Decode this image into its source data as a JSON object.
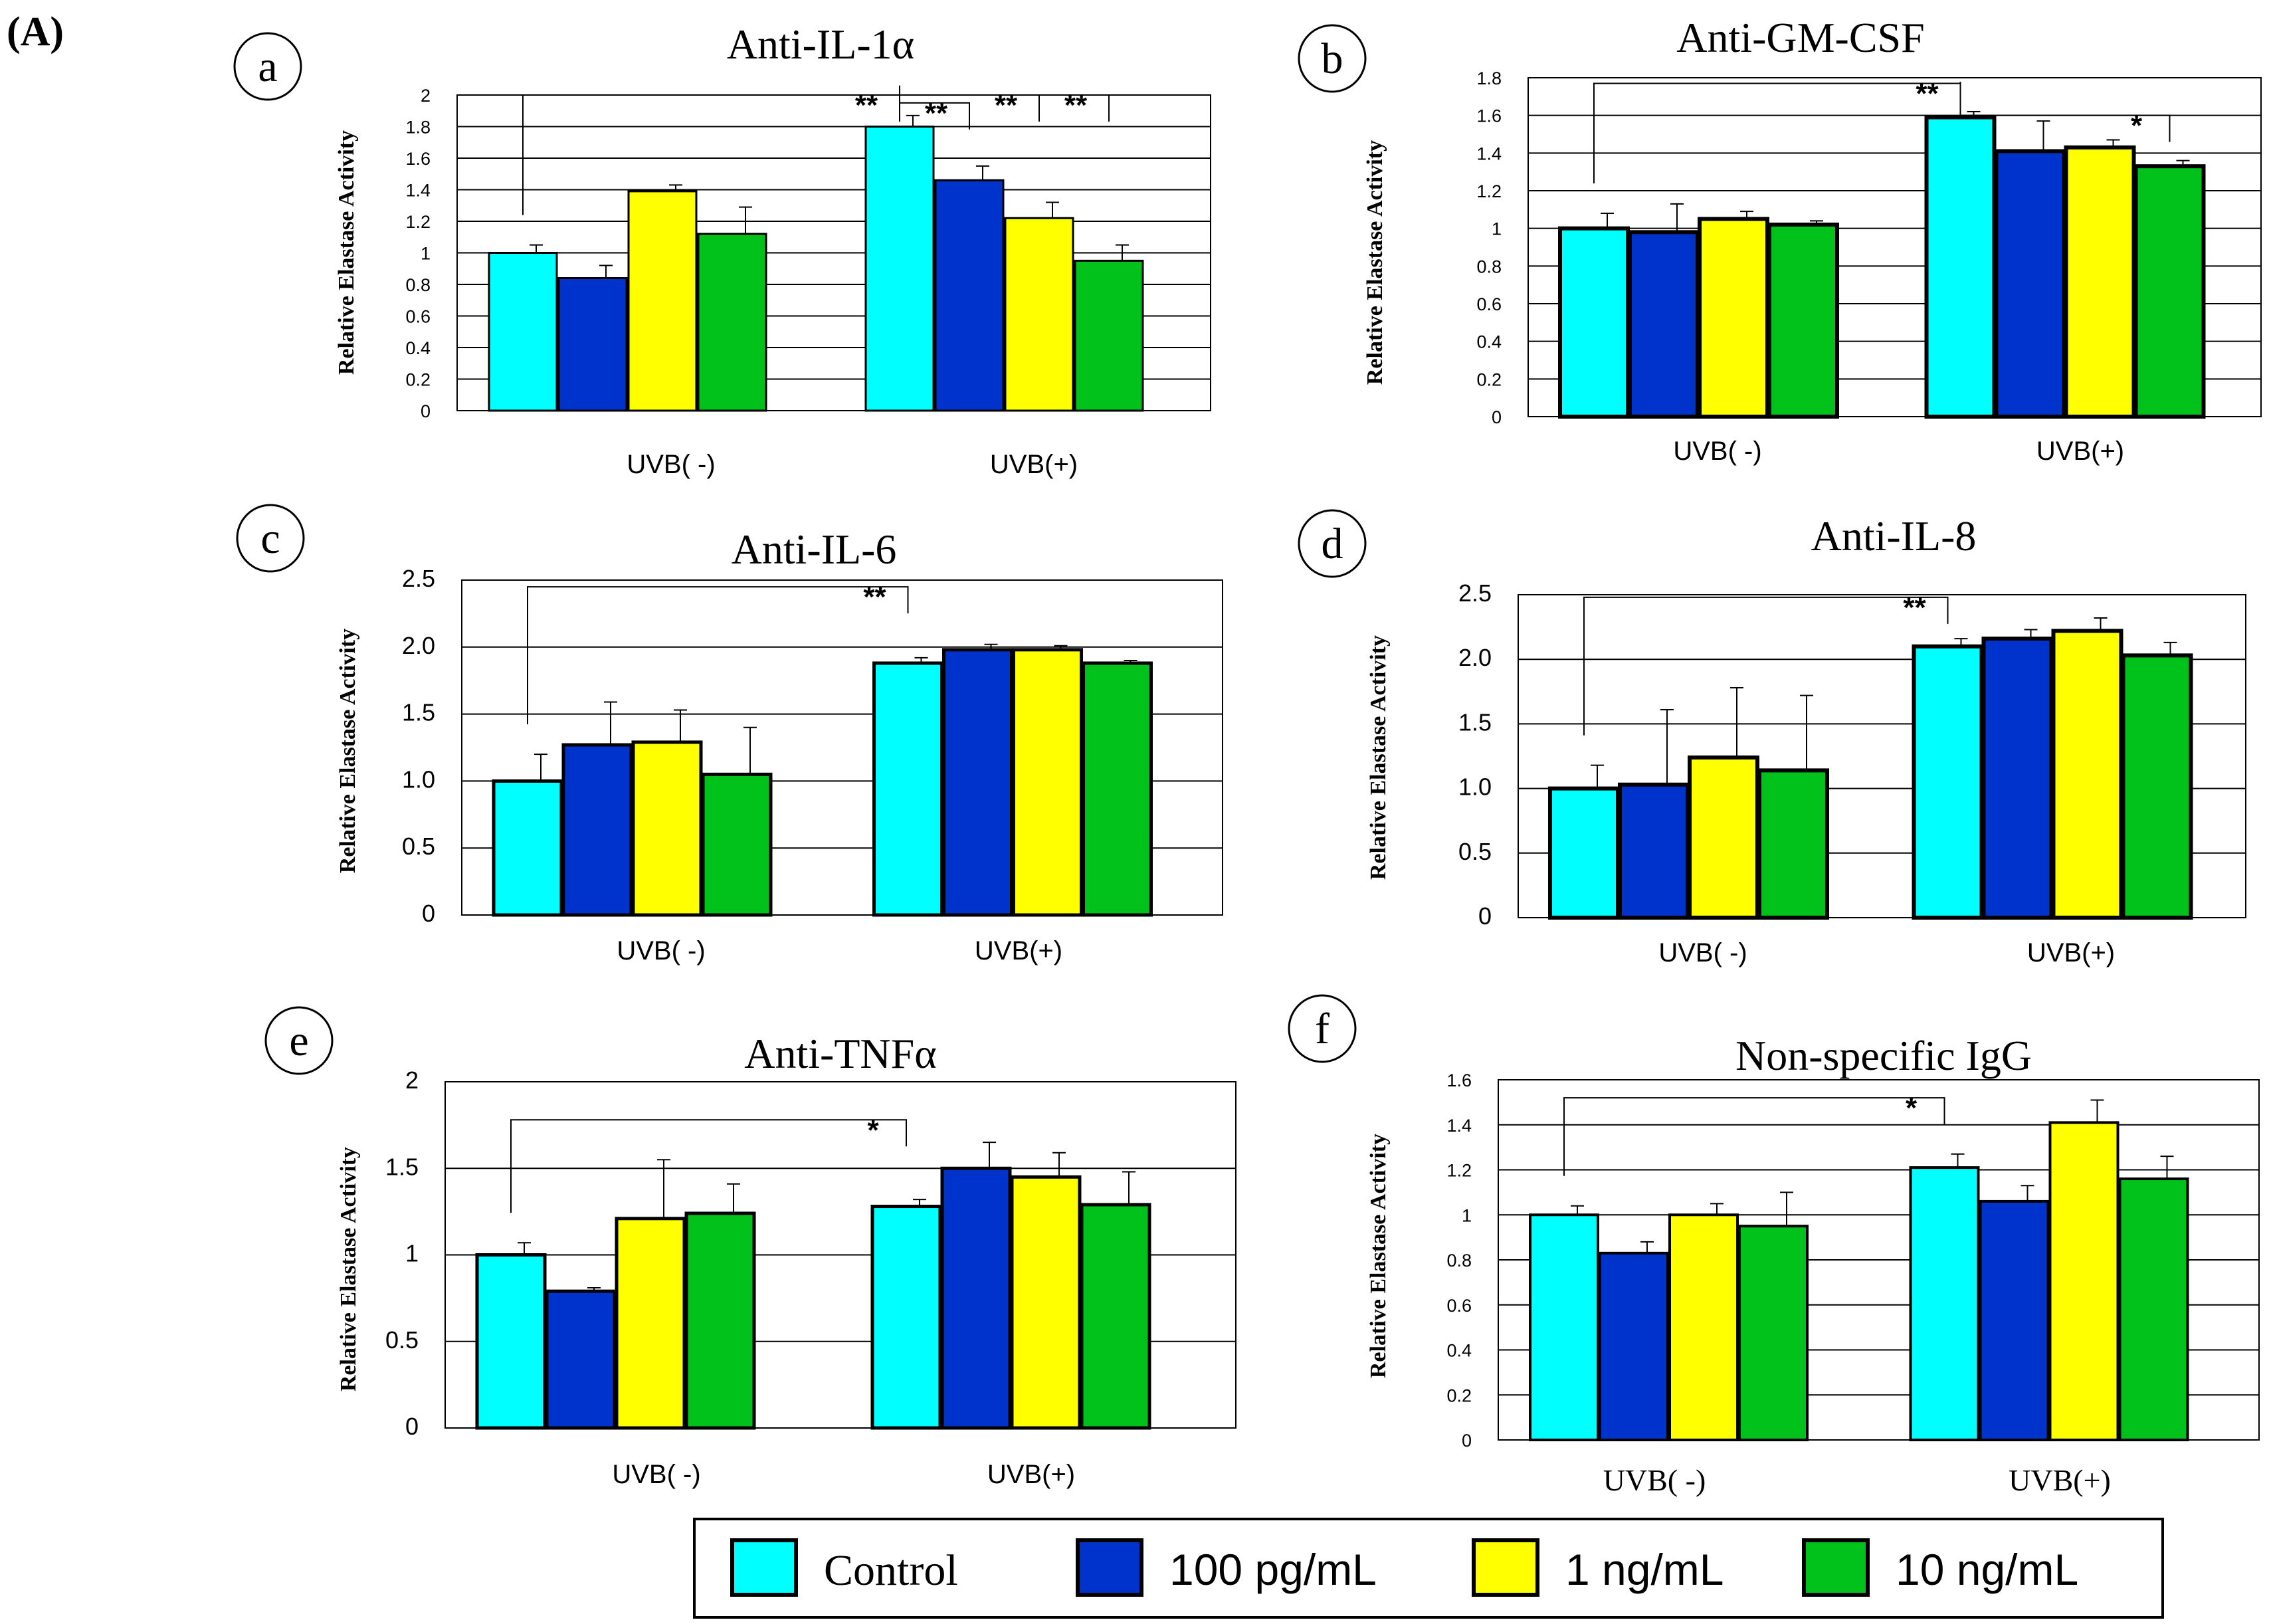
{
  "figure_label": "(A)",
  "legend": {
    "items": [
      {
        "label": "Control",
        "color": "#00FFFF"
      },
      {
        "label": "100 pg/mL",
        "color": "#0033CC"
      },
      {
        "label": "1 ng/mL",
        "color": "#FFFF00"
      },
      {
        "label": "10 ng/mL",
        "color": "#00C21A"
      }
    ]
  },
  "chart_data": [
    {
      "panel": "a",
      "type": "bar",
      "title": "Anti-IL-1α",
      "ylabel": "Relative Elastase Activity",
      "categories": [
        "UVB( -)",
        "UVB(+)"
      ],
      "ylim": [
        0,
        2
      ],
      "yticks": [
        "0",
        "0.2",
        "0.4",
        "0.6",
        "0.8",
        "1",
        "1.2",
        "1.4",
        "1.6",
        "1.8",
        "2"
      ],
      "series": [
        {
          "name": "Control",
          "values": [
            1.0,
            1.8
          ],
          "errors": [
            0.05,
            0.07
          ]
        },
        {
          "name": "100 pg/mL",
          "values": [
            0.84,
            1.46
          ],
          "errors": [
            0.08,
            0.09
          ]
        },
        {
          "name": "1 ng/mL",
          "values": [
            1.39,
            1.22
          ],
          "errors": [
            0.04,
            0.1
          ]
        },
        {
          "name": "10 ng/mL",
          "values": [
            1.12,
            0.95
          ],
          "errors": [
            0.17,
            0.1
          ]
        }
      ],
      "significance": [
        {
          "from": 0,
          "to": 4,
          "level": 2.0,
          "label": "**"
        },
        {
          "from": 4,
          "to": 5,
          "level": 1.95,
          "label": "**"
        },
        {
          "from": 4,
          "to": 6,
          "level": 2.0,
          "label": "**"
        },
        {
          "from": 4,
          "to": 7,
          "level": 2.0,
          "label": "**"
        }
      ]
    },
    {
      "panel": "b",
      "type": "bar",
      "title": "Anti-GM-CSF",
      "ylabel": "Relative Elastase Activity",
      "categories": [
        "UVB( -)",
        "UVB(+)"
      ],
      "ylim": [
        0,
        1.8
      ],
      "yticks": [
        "0",
        "0.2",
        "0.4",
        "0.6",
        "0.8",
        "1",
        "1.2",
        "1.4",
        "1.6",
        "1.8"
      ],
      "series": [
        {
          "name": "Control",
          "values": [
            1.0,
            1.59
          ],
          "errors": [
            0.08,
            0.03
          ]
        },
        {
          "name": "100 pg/mL",
          "values": [
            0.98,
            1.41
          ],
          "errors": [
            0.15,
            0.16
          ]
        },
        {
          "name": "1 ng/mL",
          "values": [
            1.05,
            1.43
          ],
          "errors": [
            0.04,
            0.04
          ]
        },
        {
          "name": "10 ng/mL",
          "values": [
            1.02,
            1.33
          ],
          "errors": [
            0.02,
            0.03
          ]
        }
      ],
      "significance": [
        {
          "from": 0,
          "to": 4,
          "level": 1.77,
          "label": "**"
        },
        {
          "from": 4,
          "to": 7,
          "level": 1.6,
          "label": "*"
        }
      ]
    },
    {
      "panel": "c",
      "type": "bar",
      "title": "Anti-IL-6",
      "ylabel": "Relative Elastase Activity",
      "categories": [
        "UVB( -)",
        "UVB(+)"
      ],
      "ylim": [
        0,
        2.5
      ],
      "yticks": [
        "0",
        "0.5",
        "1.0",
        "1.5",
        "2.0",
        "2.5"
      ],
      "series": [
        {
          "name": "Control",
          "values": [
            1.0,
            1.88
          ],
          "errors": [
            0.2,
            0.04
          ]
        },
        {
          "name": "100 pg/mL",
          "values": [
            1.27,
            1.98
          ],
          "errors": [
            0.32,
            0.04
          ]
        },
        {
          "name": "1 ng/mL",
          "values": [
            1.29,
            1.98
          ],
          "errors": [
            0.24,
            0.03
          ]
        },
        {
          "name": "10 ng/mL",
          "values": [
            1.05,
            1.88
          ],
          "errors": [
            0.35,
            0.02
          ]
        }
      ],
      "significance": [
        {
          "from": 0,
          "to": 4,
          "level": 2.45,
          "label": "**"
        }
      ]
    },
    {
      "panel": "d",
      "type": "bar",
      "title": "Anti-IL-8",
      "ylabel": "Relative Elastase Activity",
      "categories": [
        "UVB( -)",
        "UVB(+)"
      ],
      "ylim": [
        0,
        2.5
      ],
      "yticks": [
        "0",
        "0.5",
        "1.0",
        "1.5",
        "2.0",
        "2.5"
      ],
      "series": [
        {
          "name": "Control",
          "values": [
            1.0,
            2.1
          ],
          "errors": [
            0.18,
            0.06
          ]
        },
        {
          "name": "100 pg/mL",
          "values": [
            1.03,
            2.16
          ],
          "errors": [
            0.58,
            0.07
          ]
        },
        {
          "name": "1 ng/mL",
          "values": [
            1.24,
            2.22
          ],
          "errors": [
            0.54,
            0.1
          ]
        },
        {
          "name": "10 ng/mL",
          "values": [
            1.14,
            2.03
          ],
          "errors": [
            0.58,
            0.1
          ]
        }
      ],
      "significance": [
        {
          "from": 0,
          "to": 4,
          "level": 2.48,
          "label": "**"
        }
      ]
    },
    {
      "panel": "e",
      "type": "bar",
      "title": "Anti-TNFα",
      "ylabel": "Relative Elastase Activity",
      "categories": [
        "UVB( -)",
        "UVB(+)"
      ],
      "ylim": [
        0,
        2
      ],
      "yticks": [
        "0",
        "0.5",
        "1",
        "1.5",
        "2"
      ],
      "series": [
        {
          "name": "Control",
          "values": [
            1.0,
            1.28
          ],
          "errors": [
            0.07,
            0.04
          ]
        },
        {
          "name": "100 pg/mL",
          "values": [
            0.79,
            1.5
          ],
          "errors": [
            0.02,
            0.15
          ]
        },
        {
          "name": "1 ng/mL",
          "values": [
            1.21,
            1.45
          ],
          "errors": [
            0.34,
            0.14
          ]
        },
        {
          "name": "10 ng/mL",
          "values": [
            1.24,
            1.29
          ],
          "errors": [
            0.17,
            0.19
          ]
        }
      ],
      "significance": [
        {
          "from": 0,
          "to": 4,
          "level": 1.78,
          "label": "*"
        }
      ]
    },
    {
      "panel": "f",
      "type": "bar",
      "title": "Non-specific IgG",
      "ylabel": "Relative Elastase Activity",
      "categories": [
        "UVB(  -)",
        "UVB(+)"
      ],
      "ylim": [
        0,
        1.6
      ],
      "yticks": [
        "0",
        "0.2",
        "0.4",
        "0.6",
        "0.8",
        "1",
        "1.2",
        "1.4",
        "1.6"
      ],
      "series": [
        {
          "name": "Control",
          "values": [
            1.0,
            1.21
          ],
          "errors": [
            0.04,
            0.06
          ]
        },
        {
          "name": "100 pg/mL",
          "values": [
            0.83,
            1.06
          ],
          "errors": [
            0.05,
            0.07
          ]
        },
        {
          "name": "1 ng/mL",
          "values": [
            1.0,
            1.41
          ],
          "errors": [
            0.05,
            0.1
          ]
        },
        {
          "name": "10 ng/mL",
          "values": [
            0.95,
            1.16
          ],
          "errors": [
            0.15,
            0.1
          ]
        }
      ],
      "significance": [
        {
          "from": 0,
          "to": 4,
          "level": 1.52,
          "label": "*"
        }
      ]
    }
  ]
}
